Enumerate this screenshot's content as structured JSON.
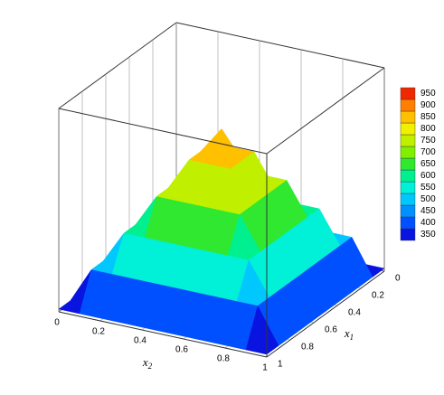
{
  "chart_data": {
    "type": "surface3d",
    "x2": [
      0,
      0.1,
      0.2,
      0.3,
      0.4,
      0.5,
      0.6,
      0.7,
      0.8,
      0.9,
      1
    ],
    "x1": [
      0,
      0.1,
      0.2,
      0.3,
      0.4,
      0.5,
      0.6,
      0.7,
      0.8,
      0.9,
      1
    ],
    "z": [
      [
        360,
        360,
        360,
        360,
        360,
        360,
        360,
        360,
        360,
        360,
        360
      ],
      [
        360,
        490,
        490,
        490,
        490,
        490,
        490,
        490,
        490,
        490,
        360
      ],
      [
        360,
        490,
        610,
        610,
        610,
        610,
        610,
        610,
        610,
        490,
        360
      ],
      [
        360,
        490,
        610,
        730,
        730,
        730,
        730,
        730,
        610,
        490,
        360
      ],
      [
        360,
        490,
        610,
        730,
        850,
        850,
        850,
        730,
        610,
        490,
        360
      ],
      [
        360,
        490,
        610,
        730,
        850,
        950,
        850,
        730,
        610,
        490,
        360
      ],
      [
        360,
        490,
        610,
        730,
        850,
        850,
        850,
        730,
        610,
        490,
        360
      ],
      [
        360,
        490,
        610,
        730,
        730,
        730,
        730,
        730,
        610,
        490,
        360
      ],
      [
        360,
        490,
        610,
        610,
        610,
        610,
        610,
        610,
        610,
        490,
        360
      ],
      [
        360,
        490,
        490,
        490,
        490,
        490,
        490,
        490,
        490,
        490,
        360
      ],
      [
        360,
        360,
        360,
        360,
        360,
        360,
        360,
        360,
        360,
        360,
        360
      ]
    ],
    "x2lim": [
      0,
      1
    ],
    "x1lim": [
      0,
      1
    ],
    "zlim": [
      350,
      1100
    ],
    "x2ticks": [
      0,
      0.2,
      0.4,
      0.6,
      0.8,
      1
    ],
    "x1ticks": [
      0,
      0.2,
      0.4,
      0.6,
      0.8,
      1
    ],
    "x2label": {
      "base": "x",
      "sub": "2"
    },
    "x1label": {
      "base": "x",
      "sub": "1"
    },
    "colorbar": {
      "levels": [
        350,
        400,
        450,
        500,
        550,
        600,
        650,
        700,
        750,
        800,
        850,
        900,
        950
      ],
      "colors": [
        "#0a14e0",
        "#0050ff",
        "#0090ff",
        "#00c8ff",
        "#00f0d8",
        "#00f090",
        "#30e830",
        "#80f000",
        "#c0f000",
        "#f0f000",
        "#ffc000",
        "#ff8000",
        "#f02800"
      ]
    }
  }
}
